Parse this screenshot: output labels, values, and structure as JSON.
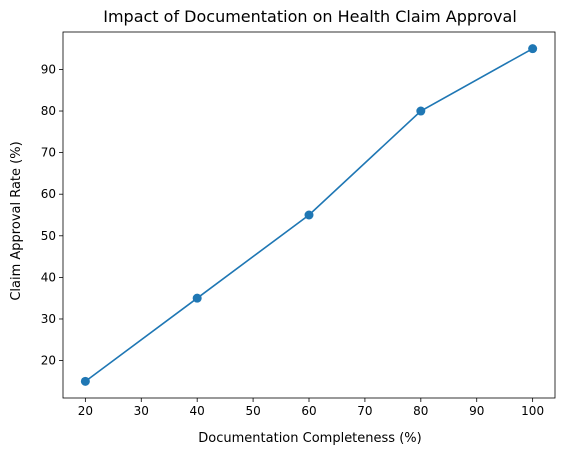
{
  "chart_data": {
    "type": "line",
    "title": "Impact of Documentation on Health Claim Approval",
    "xlabel": "Documentation Completeness (%)",
    "ylabel": "Claim Approval Rate (%)",
    "x": [
      20,
      40,
      60,
      80,
      100
    ],
    "series": [
      {
        "values": [
          15,
          35,
          55,
          80,
          95
        ],
        "color": "#1f77b4",
        "marker": "circle"
      }
    ],
    "xlim": [
      16,
      104
    ],
    "ylim": [
      11,
      99
    ],
    "xticks": [
      20,
      30,
      40,
      50,
      60,
      70,
      80,
      90,
      100
    ],
    "yticks": [
      20,
      30,
      40,
      50,
      60,
      70,
      80,
      90
    ],
    "grid": false,
    "legend": false
  }
}
